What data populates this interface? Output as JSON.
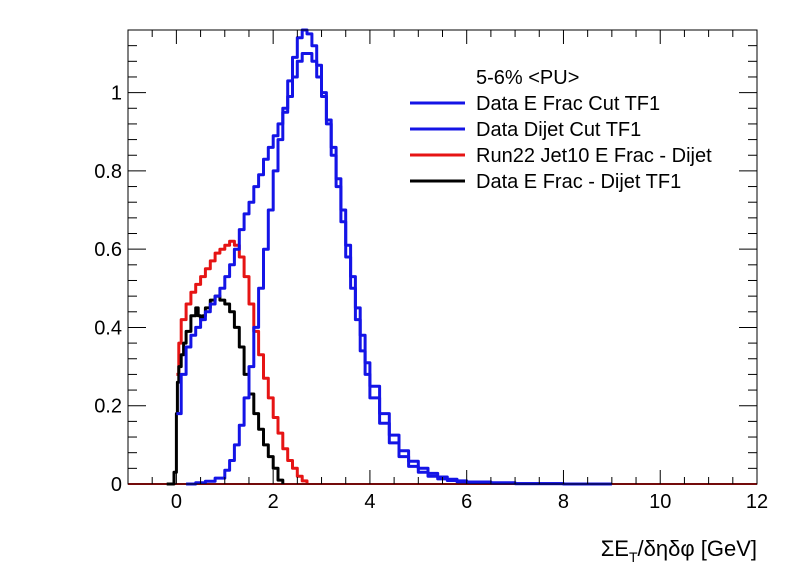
{
  "chart_data": {
    "type": "line",
    "title": "",
    "xlabel": "ΣE_T/δηδφ [GeV]",
    "xlabel_parts": {
      "sigma": "ΣE",
      "sub": "T",
      "rest": "/δηδφ [GeV]"
    },
    "ylabel": "",
    "xlim": [
      -1,
      12
    ],
    "ylim": [
      0,
      1.16
    ],
    "xticks": [
      0,
      2,
      4,
      6,
      8,
      10,
      12
    ],
    "xtick_labels": [
      "0",
      "2",
      "4",
      "6",
      "8",
      "10",
      "12"
    ],
    "yticks": [
      0,
      0.2,
      0.4,
      0.6,
      0.8,
      1
    ],
    "ytick_labels": [
      "0",
      "0.2",
      "0.4",
      "0.6",
      "0.8",
      "1"
    ],
    "grid": false,
    "legend_placement": "top-right",
    "legend_header": "5-6% <PU>",
    "series": [
      {
        "name": "Data E Frac Cut TF1",
        "color": "#1414e6",
        "x": [
          0.2,
          0.4,
          0.6,
          0.8,
          1.0,
          1.1,
          1.2,
          1.3,
          1.4,
          1.5,
          1.6,
          1.7,
          1.8,
          1.9,
          2.0,
          2.1,
          2.2,
          2.3,
          2.4,
          2.5,
          2.6,
          2.7,
          2.8,
          2.9,
          3.0,
          3.1,
          3.2,
          3.3,
          3.4,
          3.5,
          3.6,
          3.7,
          3.8,
          3.9,
          4.0,
          4.2,
          4.4,
          4.6,
          4.8,
          5.0,
          5.2,
          5.4,
          5.6,
          5.8,
          6.0,
          6.5,
          7.0,
          8.0,
          9.0
        ],
        "y": [
          0.0,
          0.003,
          0.007,
          0.015,
          0.035,
          0.06,
          0.1,
          0.15,
          0.22,
          0.3,
          0.4,
          0.5,
          0.6,
          0.7,
          0.8,
          0.88,
          0.96,
          1.03,
          1.09,
          1.14,
          1.16,
          1.15,
          1.12,
          1.07,
          1.0,
          0.92,
          0.84,
          0.76,
          0.67,
          0.58,
          0.5,
          0.42,
          0.34,
          0.28,
          0.22,
          0.155,
          0.105,
          0.07,
          0.045,
          0.03,
          0.02,
          0.013,
          0.009,
          0.006,
          0.004,
          0.002,
          0.001,
          0.0,
          0.0
        ]
      },
      {
        "name": "Data Dijet Cut TF1",
        "color": "#1414e6",
        "x": [
          0.0,
          0.1,
          0.2,
          0.3,
          0.4,
          0.5,
          0.6,
          0.7,
          0.8,
          0.9,
          1.0,
          1.1,
          1.2,
          1.3,
          1.4,
          1.5,
          1.6,
          1.7,
          1.8,
          1.9,
          2.0,
          2.1,
          2.2,
          2.3,
          2.4,
          2.5,
          2.6,
          2.7,
          2.8,
          2.9,
          3.0,
          3.1,
          3.2,
          3.3,
          3.4,
          3.5,
          3.6,
          3.7,
          3.8,
          3.9,
          4.0,
          4.2,
          4.4,
          4.6,
          4.8,
          5.0,
          5.2,
          5.4,
          5.6,
          5.8,
          6.0,
          6.5,
          7.0,
          8.0,
          9.0
        ],
        "y": [
          0.18,
          0.28,
          0.35,
          0.38,
          0.4,
          0.42,
          0.44,
          0.46,
          0.48,
          0.5,
          0.53,
          0.56,
          0.6,
          0.65,
          0.69,
          0.72,
          0.76,
          0.79,
          0.83,
          0.86,
          0.89,
          0.92,
          0.95,
          0.99,
          1.04,
          1.08,
          1.1,
          1.1,
          1.08,
          1.04,
          0.99,
          0.93,
          0.86,
          0.78,
          0.7,
          0.61,
          0.53,
          0.45,
          0.38,
          0.31,
          0.25,
          0.18,
          0.125,
          0.085,
          0.058,
          0.04,
          0.027,
          0.018,
          0.012,
          0.008,
          0.005,
          0.003,
          0.001,
          0.0,
          0.0
        ]
      },
      {
        "name": "Run22 Jet10 E Frac - Dijet",
        "color": "#e61414",
        "x": [
          0.0,
          0.05,
          0.1,
          0.2,
          0.3,
          0.4,
          0.5,
          0.6,
          0.7,
          0.8,
          0.9,
          1.0,
          1.1,
          1.2,
          1.3,
          1.4,
          1.5,
          1.6,
          1.7,
          1.8,
          1.9,
          2.0,
          2.1,
          2.2,
          2.3,
          2.4,
          2.5,
          2.6,
          2.7
        ],
        "y": [
          0.28,
          0.36,
          0.42,
          0.46,
          0.49,
          0.51,
          0.53,
          0.55,
          0.57,
          0.59,
          0.6,
          0.61,
          0.62,
          0.61,
          0.58,
          0.53,
          0.46,
          0.39,
          0.33,
          0.27,
          0.22,
          0.17,
          0.13,
          0.09,
          0.06,
          0.04,
          0.02,
          0.008,
          0.0
        ]
      },
      {
        "name": "Data E Frac - Dijet TF1",
        "color": "#000000",
        "x": [
          -0.2,
          -0.05,
          0.0,
          0.02,
          0.05,
          0.1,
          0.15,
          0.2,
          0.3,
          0.4,
          0.45,
          0.5,
          0.55,
          0.6,
          0.7,
          0.8,
          0.9,
          1.0,
          1.1,
          1.2,
          1.3,
          1.4,
          1.5,
          1.6,
          1.7,
          1.8,
          1.9,
          2.0,
          2.1,
          2.2
        ],
        "y": [
          0.0,
          0.03,
          0.18,
          0.26,
          0.3,
          0.33,
          0.36,
          0.39,
          0.43,
          0.45,
          0.43,
          0.42,
          0.43,
          0.45,
          0.47,
          0.48,
          0.47,
          0.46,
          0.44,
          0.4,
          0.35,
          0.28,
          0.23,
          0.18,
          0.14,
          0.1,
          0.07,
          0.04,
          0.01,
          0.0
        ]
      }
    ]
  }
}
